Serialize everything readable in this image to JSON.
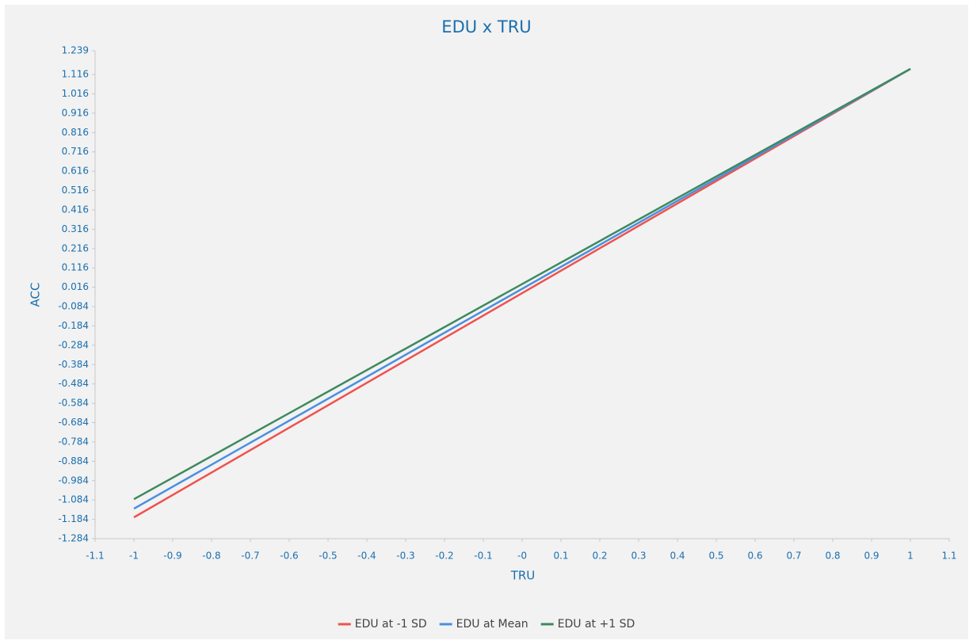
{
  "chart_data": {
    "type": "line",
    "title": "EDU x TRU",
    "xlabel": "TRU",
    "ylabel": "ACC",
    "x": [
      -1,
      1
    ],
    "series": [
      {
        "name": "EDU at -1 SD",
        "color": "#f0524d",
        "values": [
          -1.174,
          1.145
        ]
      },
      {
        "name": "EDU at Mean",
        "color": "#4a8fe0",
        "values": [
          -1.129,
          1.145
        ]
      },
      {
        "name": "EDU at +1 SD",
        "color": "#3d8a5f",
        "values": [
          -1.08,
          1.145
        ]
      }
    ],
    "xlim": [
      -1.1,
      1.1
    ],
    "xticks": [
      -1.1,
      -1,
      -0.9,
      -0.8,
      -0.7,
      -0.6,
      -0.5,
      -0.4,
      -0.3,
      -0.2,
      -0.1,
      {
        "value": 0,
        "label": "-0"
      },
      0.1,
      0.2,
      0.3,
      0.4,
      0.5,
      0.6,
      0.7,
      0.8,
      0.9,
      1,
      1.1
    ],
    "ylim": [
      -1.284,
      1.239
    ],
    "yticks": [
      1.239,
      1.116,
      1.016,
      0.916,
      0.816,
      0.716,
      0.616,
      0.516,
      0.416,
      0.316,
      0.216,
      0.116,
      0.016,
      -0.084,
      -0.184,
      -0.284,
      -0.384,
      -0.484,
      -0.584,
      -0.684,
      -0.784,
      -0.884,
      -0.984,
      -1.084,
      -1.184,
      -1.284
    ],
    "legend": "bottom"
  }
}
